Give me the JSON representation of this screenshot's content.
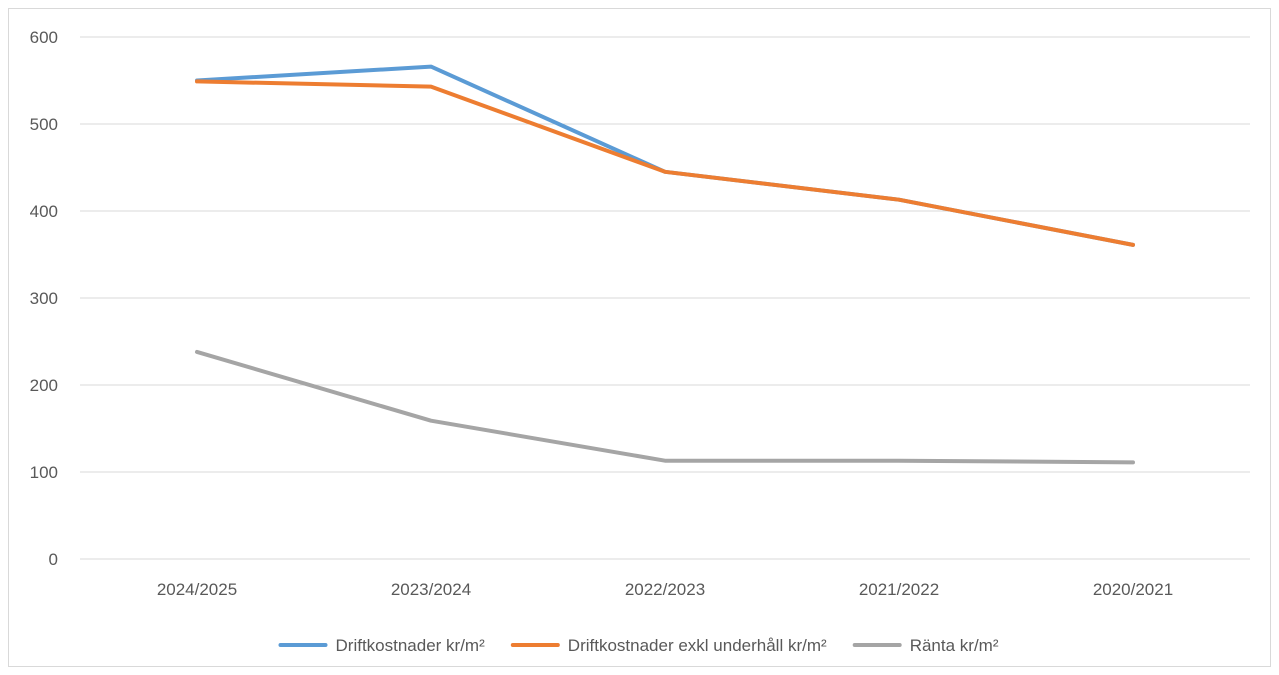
{
  "chart_data": {
    "type": "line",
    "title": "",
    "xlabel": "",
    "ylabel": "",
    "categories": [
      "2024/2025",
      "2023/2024",
      "2022/2023",
      "2021/2022",
      "2020/2021"
    ],
    "ylim": [
      0,
      600
    ],
    "yticks": [
      0,
      100,
      200,
      300,
      400,
      500,
      600
    ],
    "grid": true,
    "legend_position": "bottom",
    "series": [
      {
        "name": "Driftkostnader kr/m²",
        "color": "#5b9bd5",
        "values": [
          550,
          566,
          445,
          413,
          361
        ]
      },
      {
        "name": "Driftkostnader exkl underhåll kr/m²",
        "color": "#ed7d31",
        "values": [
          549,
          543,
          445,
          413,
          361
        ]
      },
      {
        "name": "Ränta kr/m²",
        "color": "#a5a5a5",
        "values": [
          238,
          159,
          113,
          113,
          111
        ]
      }
    ]
  }
}
